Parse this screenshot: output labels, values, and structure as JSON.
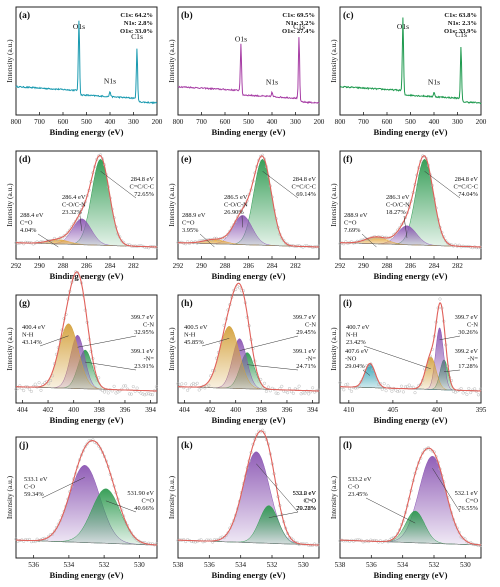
{
  "colors": {
    "envelope": "#e0605a",
    "raw": "#b9b9b9",
    "survey_a": "#1a9ab0",
    "survey_b": "#a73ea5",
    "survey_c": "#1f9a4f",
    "C": [
      "#2e9a50",
      "#8b56b3",
      "#e4a83c"
    ],
    "N": [
      "#2e9a50",
      "#8b56b3",
      "#d4a13c",
      "#2a9fb3"
    ],
    "O": [
      "#8b56b3",
      "#2e9a50"
    ]
  },
  "chart_data": [
    {
      "id": "a",
      "type": "line",
      "panel_label": "(a)",
      "xlabel": "Binding energy (eV)",
      "ylabel": "Intensity (a.u.)",
      "x_range": [
        800,
        200
      ],
      "x_ticks": [
        800,
        700,
        600,
        500,
        400,
        300,
        200
      ],
      "composition": [
        "C1s: 64.2%",
        "N1s: 2.8%",
        "O1s: 33.0%"
      ],
      "peaks": [
        {
          "label": "O1s",
          "x": 532,
          "height": 0.82
        },
        {
          "label": "N1s",
          "x": 400,
          "height": 0.06
        },
        {
          "label": "C1s",
          "x": 285,
          "height": 0.58
        }
      ],
      "color_key": "survey_a"
    },
    {
      "id": "b",
      "type": "line",
      "panel_label": "(b)",
      "xlabel": "Binding energy (eV)",
      "ylabel": "Intensity (a.u.)",
      "x_range": [
        800,
        200
      ],
      "x_ticks": [
        800,
        700,
        600,
        500,
        400,
        300,
        200
      ],
      "composition": [
        "C1s: 69.5%",
        "N1s: 3.2%",
        "O1s: 27.4%"
      ],
      "peaks": [
        {
          "label": "O1s",
          "x": 532,
          "height": 0.55
        },
        {
          "label": "N1s",
          "x": 400,
          "height": 0.05
        },
        {
          "label": "C1s",
          "x": 285,
          "height": 0.72
        }
      ],
      "color_key": "survey_b"
    },
    {
      "id": "c",
      "type": "line",
      "panel_label": "(c)",
      "xlabel": "Binding energy (eV)",
      "ylabel": "Intensity (a.u.)",
      "x_range": [
        800,
        200
      ],
      "x_ticks": [
        800,
        700,
        600,
        500,
        400,
        300,
        200
      ],
      "composition": [
        "C1s: 63.8%",
        "N1s: 2.3%",
        "O1s: 33.9%"
      ],
      "peaks": [
        {
          "label": "O1s",
          "x": 532,
          "height": 0.85
        },
        {
          "label": "N1s",
          "x": 400,
          "height": 0.05
        },
        {
          "label": "C1s",
          "x": 285,
          "height": 0.6
        }
      ],
      "color_key": "survey_c"
    },
    {
      "id": "d",
      "type": "area",
      "panel_label": "(d)",
      "xlabel": "Binding energy (eV)",
      "ylabel": "Intensity (a.u.)",
      "x_range": [
        292,
        280
      ],
      "x_ticks": [
        292,
        290,
        288,
        286,
        284,
        282
      ],
      "color_key": "C",
      "components": [
        {
          "center": 284.8,
          "amplitude": 1.0,
          "width": 0.75,
          "lines": [
            "284.8 eV",
            "C=C/C-C",
            "72.65%"
          ]
        },
        {
          "center": 286.4,
          "amplitude": 0.3,
          "width": 0.8,
          "lines": [
            "286.4 eV",
            "C-O/C-N",
            "23.32%"
          ]
        },
        {
          "center": 288.4,
          "amplitude": 0.05,
          "width": 0.9,
          "lines": [
            "288.4 eV",
            "C=O",
            "4.04%"
          ]
        }
      ]
    },
    {
      "id": "e",
      "type": "area",
      "panel_label": "(e)",
      "xlabel": "Binding energy (eV)",
      "ylabel": "Intensity (a.u.)",
      "x_range": [
        292,
        280
      ],
      "x_ticks": [
        292,
        290,
        288,
        286,
        284,
        282
      ],
      "color_key": "C",
      "components": [
        {
          "center": 284.8,
          "amplitude": 1.0,
          "width": 0.75,
          "lines": [
            "284.8 eV",
            "C=C/C-C",
            "69.14%"
          ]
        },
        {
          "center": 286.5,
          "amplitude": 0.34,
          "width": 0.8,
          "lines": [
            "286.5 eV",
            "C-O/C-N",
            "26.90%"
          ]
        },
        {
          "center": 288.9,
          "amplitude": 0.05,
          "width": 0.9,
          "lines": [
            "288.9 eV",
            "C=O",
            "3.95%"
          ]
        }
      ]
    },
    {
      "id": "f",
      "type": "area",
      "panel_label": "(f)",
      "xlabel": "Binding energy (eV)",
      "ylabel": "Intensity (a.u.)",
      "x_range": [
        292,
        280
      ],
      "x_ticks": [
        292,
        290,
        288,
        286,
        284,
        282
      ],
      "color_key": "C",
      "components": [
        {
          "center": 284.8,
          "amplitude": 1.0,
          "width": 0.75,
          "lines": [
            "284.8 eV",
            "C=C/C-C",
            "74.04%"
          ]
        },
        {
          "center": 286.3,
          "amplitude": 0.22,
          "width": 0.8,
          "lines": [
            "286.3 eV",
            "C-O/C-N",
            "18.27%"
          ]
        },
        {
          "center": 288.9,
          "amplitude": 0.08,
          "width": 0.9,
          "lines": [
            "288.9 eV",
            "C=O",
            "7.69%"
          ]
        }
      ]
    },
    {
      "id": "g",
      "type": "area",
      "panel_label": "(g)",
      "xlabel": "Binding energy (eV)",
      "ylabel": "Intensity (a.u.)",
      "x_range": [
        404.5,
        393.5
      ],
      "x_ticks": [
        404,
        402,
        400,
        398,
        396,
        394
      ],
      "color_key": "N",
      "components": [
        {
          "center": 399.1,
          "amplitude": 0.45,
          "width": 0.55,
          "lines": [
            "399.1 eV",
            "-N=",
            "23.91%"
          ]
        },
        {
          "center": 399.7,
          "amplitude": 0.62,
          "width": 0.55,
          "lines": [
            "399.7 eV",
            "C-N",
            "32.95%"
          ]
        },
        {
          "center": 400.4,
          "amplitude": 0.75,
          "width": 0.75,
          "lines": [
            "400.4 eV",
            "N-H",
            "43.14%"
          ]
        }
      ]
    },
    {
      "id": "h",
      "type": "area",
      "panel_label": "(h)",
      "xlabel": "Binding energy (eV)",
      "ylabel": "Intensity (a.u.)",
      "x_range": [
        404.5,
        393.5
      ],
      "x_ticks": [
        404,
        402,
        400,
        398,
        396,
        394
      ],
      "color_key": "N",
      "components": [
        {
          "center": 399.1,
          "amplitude": 0.42,
          "width": 0.55,
          "lines": [
            "399.1 eV",
            "-N=",
            "24.71%"
          ]
        },
        {
          "center": 399.7,
          "amplitude": 0.58,
          "width": 0.55,
          "lines": [
            "399.7 eV",
            "C-N",
            "29.45%"
          ]
        },
        {
          "center": 400.5,
          "amplitude": 0.72,
          "width": 0.75,
          "lines": [
            "400.5 eV",
            "N-H",
            "45.85%"
          ]
        }
      ]
    },
    {
      "id": "i",
      "type": "area",
      "panel_label": "(i)",
      "xlabel": "Binding energy (eV)",
      "ylabel": "Intensity (a.u.)",
      "x_range": [
        411,
        395
      ],
      "x_ticks": [
        410,
        405,
        400,
        395
      ],
      "color_key": "N",
      "components": [
        {
          "center": 399.2,
          "amplitude": 0.35,
          "width": 0.45,
          "lines": [
            "399.2 eV",
            "-N=",
            "17.28%"
          ]
        },
        {
          "center": 399.7,
          "amplitude": 0.72,
          "width": 0.45,
          "lines": [
            "399.7 eV",
            "C-N",
            "30.26%"
          ]
        },
        {
          "center": 400.7,
          "amplitude": 0.38,
          "width": 0.6,
          "lines": [
            "400.7 eV",
            "N-H",
            "23.42%"
          ]
        },
        {
          "center": 407.6,
          "amplitude": 0.28,
          "width": 0.6,
          "lines": [
            "407.6 eV",
            "-NO",
            "29.04%"
          ]
        }
      ]
    },
    {
      "id": "j",
      "type": "area",
      "panel_label": "(j)",
      "xlabel": "Binding energy (eV)",
      "ylabel": "Intensity (a.u.)",
      "x_range": [
        537,
        529
      ],
      "x_ticks": [
        536,
        534,
        532,
        530
      ],
      "color_key": "O",
      "components": [
        {
          "center": 533.1,
          "amplitude": 0.78,
          "width": 0.85,
          "lines": [
            "533.1 eV",
            "C-O",
            "59.34%"
          ]
        },
        {
          "center": 531.9,
          "amplitude": 0.55,
          "width": 0.8,
          "lines": [
            "531.90 eV",
            "C=O",
            "40.66%"
          ]
        }
      ]
    },
    {
      "id": "k",
      "type": "area",
      "panel_label": "(k)",
      "xlabel": "Binding energy (eV)",
      "ylabel": "Intensity (a.u.)",
      "x_range": [
        538,
        529
      ],
      "x_ticks": [
        538,
        536,
        534,
        532,
        530
      ],
      "color_key": "O",
      "components": [
        {
          "center": 533.0,
          "amplitude": 0.92,
          "width": 0.85,
          "lines": [
            "533.0 eV",
            "C-O",
            "70.22%"
          ]
        },
        {
          "center": 532.2,
          "amplitude": 0.38,
          "width": 0.6,
          "lines": [
            "532.2 eV",
            "C=O",
            "29.78%"
          ]
        }
      ]
    },
    {
      "id": "l",
      "type": "area",
      "panel_label": "(l)",
      "xlabel": "Binding energy (eV)",
      "ylabel": "Intensity (a.u.)",
      "x_range": [
        538,
        529
      ],
      "x_ticks": [
        538,
        536,
        534,
        532,
        530
      ],
      "color_key": "O",
      "components": [
        {
          "center": 532.1,
          "amplitude": 0.88,
          "width": 0.85,
          "lines": [
            "532.1 eV",
            "C=O",
            "76.55%"
          ]
        },
        {
          "center": 533.2,
          "amplitude": 0.32,
          "width": 0.6,
          "lines": [
            "533.2 eV",
            "C-O",
            "23.45%"
          ]
        }
      ]
    }
  ]
}
